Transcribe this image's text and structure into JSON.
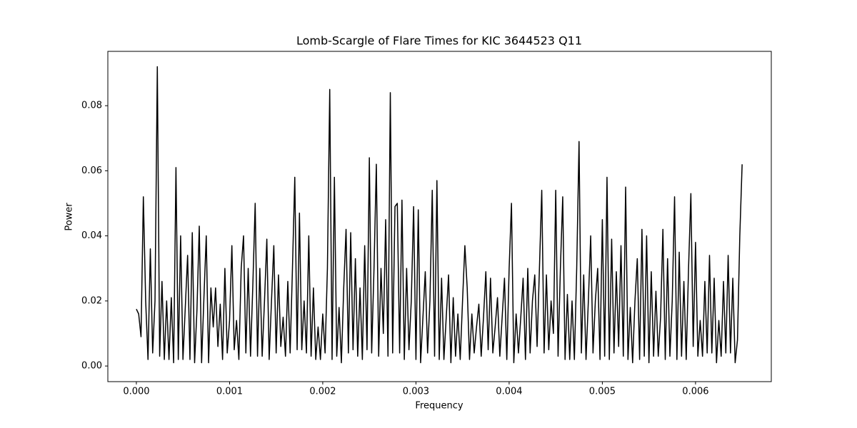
{
  "chart_data": {
    "type": "line",
    "title": "Lomb-Scargle of Flare Times for KIC 3644523 Q11",
    "x_label": "Frequency",
    "y_label": "Power",
    "color": "#000000",
    "grid": false,
    "xlim": [
      -0.000306,
      0.006813
    ],
    "ylim": [
      -0.0048,
      0.0967
    ],
    "xticks": [
      {
        "value": 0,
        "label": "0.000"
      },
      {
        "value": 0.001,
        "label": "0.001"
      },
      {
        "value": 0.002,
        "label": "0.002"
      },
      {
        "value": 0.003,
        "label": "0.003"
      },
      {
        "value": 0.004,
        "label": "0.004"
      },
      {
        "value": 0.005,
        "label": "0.005"
      },
      {
        "value": 0.006,
        "label": "0.006"
      }
    ],
    "yticks": [
      {
        "value": 0,
        "label": "0.00"
      },
      {
        "value": 0.02,
        "label": "0.02"
      },
      {
        "value": 0.04,
        "label": "0.04"
      },
      {
        "value": 0.06,
        "label": "0.06"
      },
      {
        "value": 0.08,
        "label": "0.08"
      }
    ],
    "x": [
      0,
      2.5e-05,
      5e-05,
      7.5e-05,
      0.0001,
      0.000125,
      0.00015,
      0.000175,
      0.0002,
      0.000225,
      0.00025,
      0.000275,
      0.0003,
      0.000325,
      0.00035,
      0.000375,
      0.0004,
      0.000425,
      0.00045,
      0.000475,
      0.0005,
      0.000525,
      0.00055,
      0.000575,
      0.0006,
      0.000625,
      0.00065,
      0.000675,
      0.0007,
      0.000725,
      0.00075,
      0.000775,
      0.0008,
      0.000825,
      0.00085,
      0.000875,
      0.0009,
      0.000925,
      0.00095,
      0.000975,
      0.001,
      0.001025,
      0.00105,
      0.001075,
      0.0011,
      0.001125,
      0.00115,
      0.001175,
      0.0012,
      0.001225,
      0.00125,
      0.001275,
      0.0013,
      0.001325,
      0.00135,
      0.001375,
      0.0014,
      0.001425,
      0.00145,
      0.001475,
      0.0015,
      0.001525,
      0.00155,
      0.001575,
      0.0016,
      0.001625,
      0.00165,
      0.001675,
      0.0017,
      0.001725,
      0.00175,
      0.001775,
      0.0018,
      0.001825,
      0.00185,
      0.001875,
      0.0019,
      0.001925,
      0.00195,
      0.001975,
      0.002,
      0.002025,
      0.00205,
      0.002075,
      0.0021,
      0.002125,
      0.00215,
      0.002175,
      0.0022,
      0.002225,
      0.00225,
      0.002275,
      0.0023,
      0.002325,
      0.00235,
      0.002375,
      0.0024,
      0.002425,
      0.00245,
      0.002475,
      0.0025,
      0.002525,
      0.00255,
      0.002575,
      0.0026,
      0.002625,
      0.00265,
      0.002675,
      0.0027,
      0.002725,
      0.00275,
      0.002775,
      0.0028,
      0.002825,
      0.00285,
      0.002875,
      0.0029,
      0.002925,
      0.00295,
      0.002975,
      0.003,
      0.003025,
      0.00305,
      0.003075,
      0.0031,
      0.003125,
      0.00315,
      0.003175,
      0.0032,
      0.003225,
      0.00325,
      0.003275,
      0.0033,
      0.003325,
      0.00335,
      0.003375,
      0.0034,
      0.003425,
      0.00345,
      0.003475,
      0.0035,
      0.003525,
      0.00355,
      0.003575,
      0.0036,
      0.003625,
      0.00365,
      0.003675,
      0.0037,
      0.003725,
      0.00375,
      0.003775,
      0.0038,
      0.003825,
      0.00385,
      0.003875,
      0.0039,
      0.003925,
      0.00395,
      0.003975,
      0.004,
      0.004025,
      0.00405,
      0.004075,
      0.0041,
      0.004125,
      0.00415,
      0.004175,
      0.0042,
      0.004225,
      0.00425,
      0.004275,
      0.0043,
      0.004325,
      0.00435,
      0.004375,
      0.0044,
      0.004425,
      0.00445,
      0.004475,
      0.0045,
      0.004525,
      0.00455,
      0.004575,
      0.0046,
      0.004625,
      0.00465,
      0.004675,
      0.0047,
      0.004725,
      0.00475,
      0.004775,
      0.0048,
      0.004825,
      0.00485,
      0.004875,
      0.0049,
      0.004925,
      0.00495,
      0.004975,
      0.005,
      0.005025,
      0.00505,
      0.005075,
      0.0051,
      0.005125,
      0.00515,
      0.005175,
      0.0052,
      0.005225,
      0.00525,
      0.005275,
      0.0053,
      0.005325,
      0.00535,
      0.005375,
      0.0054,
      0.005425,
      0.00545,
      0.005475,
      0.0055,
      0.005525,
      0.00555,
      0.005575,
      0.0056,
      0.005625,
      0.00565,
      0.005675,
      0.0057,
      0.005725,
      0.00575,
      0.005775,
      0.0058,
      0.005825,
      0.00585,
      0.005875,
      0.0059,
      0.005925,
      0.00595,
      0.005975,
      0.006,
      0.006025,
      0.00605,
      0.006075,
      0.0061,
      0.006125,
      0.00615,
      0.006175,
      0.0062,
      0.006225,
      0.00625,
      0.006275,
      0.0063,
      0.006325,
      0.00635,
      0.006375,
      0.0064,
      0.006425,
      0.00645,
      0.006475,
      0.0065
    ],
    "values": [
      0.0175,
      0.016,
      0.009,
      0.052,
      0.02,
      0.002,
      0.036,
      0.004,
      0.02,
      0.092,
      0.003,
      0.026,
      0.002,
      0.02,
      0.002,
      0.021,
      0.001,
      0.061,
      0.002,
      0.04,
      0.002,
      0.018,
      0.034,
      0.002,
      0.041,
      0.001,
      0.017,
      0.043,
      0.001,
      0.021,
      0.04,
      0.001,
      0.024,
      0.012,
      0.024,
      0.006,
      0.019,
      0.002,
      0.03,
      0.004,
      0.014,
      0.037,
      0.005,
      0.014,
      0.002,
      0.03,
      0.04,
      0.004,
      0.03,
      0.003,
      0.025,
      0.05,
      0.003,
      0.03,
      0.003,
      0.02,
      0.039,
      0.002,
      0.02,
      0.037,
      0.004,
      0.028,
      0.006,
      0.015,
      0.003,
      0.026,
      0.004,
      0.03,
      0.058,
      0.005,
      0.047,
      0.005,
      0.02,
      0.004,
      0.04,
      0.003,
      0.024,
      0.002,
      0.012,
      0.002,
      0.016,
      0.004,
      0.03,
      0.085,
      0.002,
      0.058,
      0.003,
      0.018,
      0.001,
      0.024,
      0.042,
      0.004,
      0.041,
      0.005,
      0.033,
      0.003,
      0.024,
      0.002,
      0.037,
      0.005,
      0.064,
      0.004,
      0.03,
      0.062,
      0.003,
      0.03,
      0.01,
      0.045,
      0.003,
      0.084,
      0.004,
      0.049,
      0.05,
      0.004,
      0.051,
      0.002,
      0.03,
      0.005,
      0.02,
      0.049,
      0.002,
      0.048,
      0.001,
      0.015,
      0.029,
      0.004,
      0.02,
      0.054,
      0.003,
      0.057,
      0.002,
      0.027,
      0.002,
      0.015,
      0.028,
      0.001,
      0.021,
      0.003,
      0.016,
      0.002,
      0.02,
      0.037,
      0.024,
      0.002,
      0.016,
      0.004,
      0.012,
      0.019,
      0.003,
      0.015,
      0.029,
      0.005,
      0.027,
      0.004,
      0.012,
      0.021,
      0.003,
      0.015,
      0.027,
      0.002,
      0.03,
      0.05,
      0.001,
      0.016,
      0.004,
      0.015,
      0.027,
      0.002,
      0.03,
      0.004,
      0.02,
      0.028,
      0.006,
      0.03,
      0.054,
      0.004,
      0.028,
      0.005,
      0.02,
      0.01,
      0.054,
      0.003,
      0.03,
      0.052,
      0.002,
      0.022,
      0.002,
      0.02,
      0.002,
      0.03,
      0.069,
      0.004,
      0.028,
      0.002,
      0.02,
      0.04,
      0.004,
      0.02,
      0.03,
      0.002,
      0.045,
      0.003,
      0.058,
      0.002,
      0.039,
      0.004,
      0.029,
      0.006,
      0.037,
      0.003,
      0.055,
      0.002,
      0.018,
      0.001,
      0.02,
      0.033,
      0.002,
      0.042,
      0.003,
      0.04,
      0.001,
      0.029,
      0.003,
      0.023,
      0.003,
      0.015,
      0.042,
      0.002,
      0.033,
      0.003,
      0.02,
      0.052,
      0.002,
      0.035,
      0.003,
      0.026,
      0.002,
      0.03,
      0.053,
      0.006,
      0.038,
      0.003,
      0.014,
      0.003,
      0.026,
      0.004,
      0.034,
      0.004,
      0.027,
      0.001,
      0.014,
      0.003,
      0.026,
      0.004,
      0.034,
      0.004,
      0.027,
      0.001,
      0.008,
      0.04,
      0.062
    ]
  }
}
